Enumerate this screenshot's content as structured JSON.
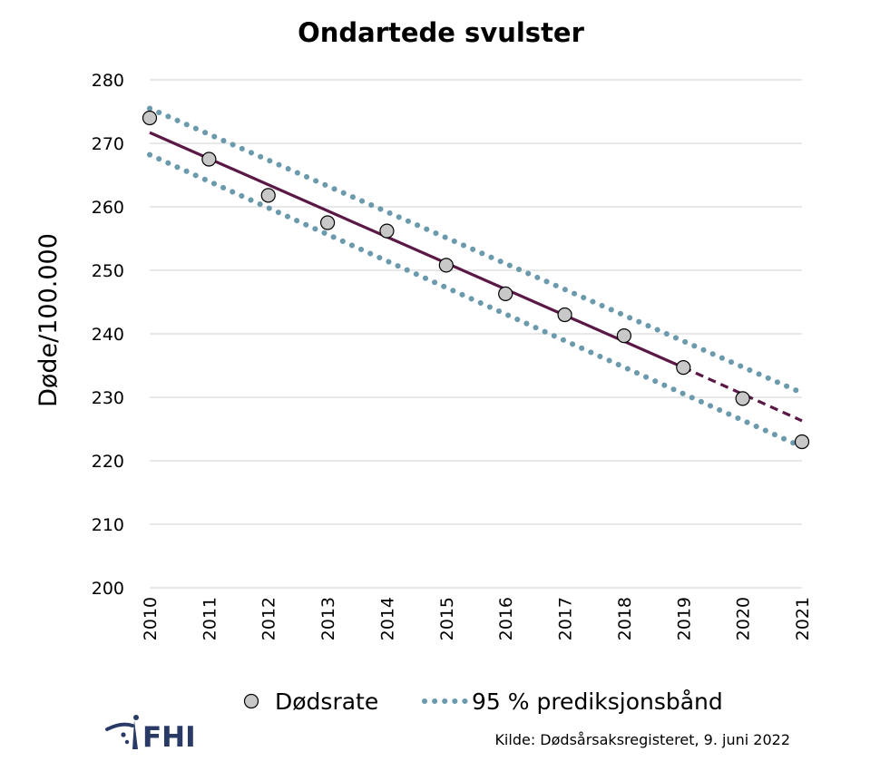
{
  "chart_data": {
    "type": "scatter",
    "title": "Ondartede svulster",
    "xlabel": "",
    "ylabel": "Døde/100.000",
    "xlim": [
      2010,
      2021
    ],
    "ylim": [
      200,
      280
    ],
    "yticks": [
      200,
      210,
      220,
      230,
      240,
      250,
      260,
      270,
      280
    ],
    "xticks": [
      "2010",
      "2011",
      "2012",
      "2013",
      "2014",
      "2015",
      "2016",
      "2017",
      "2018",
      "2019",
      "2020",
      "2021"
    ],
    "grid": true,
    "legend_position": "bottom",
    "series": [
      {
        "name": "Dødsrate",
        "kind": "points",
        "color": "#c8c8c8",
        "x": [
          2010,
          2011,
          2012,
          2013,
          2014,
          2015,
          2016,
          2017,
          2018,
          2019,
          2020,
          2021
        ],
        "y": [
          274.0,
          267.5,
          261.8,
          257.5,
          256.2,
          250.8,
          246.3,
          243.0,
          239.7,
          234.7,
          229.8,
          223.0
        ]
      },
      {
        "kind": "trend",
        "color": "#5a1846",
        "x": [
          2010,
          2019
        ],
        "y": [
          271.7,
          234.7
        ]
      },
      {
        "kind": "trend-projection",
        "color": "#5a1846",
        "x": [
          2019,
          2021
        ],
        "y": [
          234.7,
          226.3
        ]
      },
      {
        "name": "95 % prediksjonsbånd",
        "kind": "band-upper",
        "color": "#6b9aad",
        "x": [
          2010,
          2021
        ],
        "y": [
          275.5,
          230.7
        ]
      },
      {
        "kind": "band-lower",
        "color": "#6b9aad",
        "x": [
          2010,
          2021
        ],
        "y": [
          268.2,
          222.2
        ]
      }
    ]
  },
  "source": "Kilde: Dødsårsaksregisteret, 9. juni 2022",
  "logo": {
    "text": "FHI",
    "color": "#2a3a66"
  },
  "colors": {
    "grid": "#d9d9d9"
  }
}
